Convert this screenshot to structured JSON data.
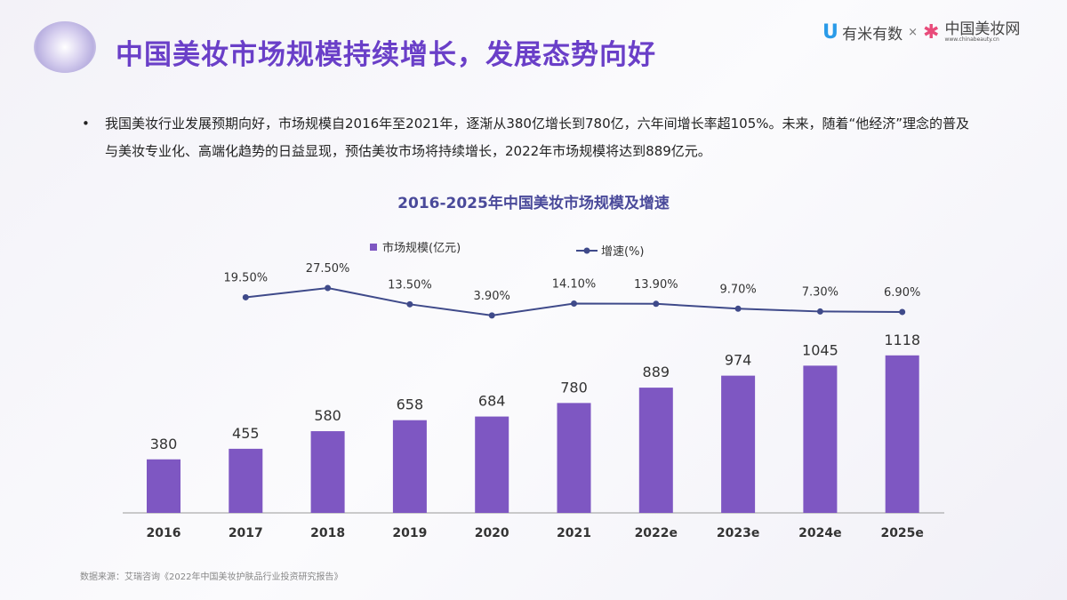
{
  "header": {
    "title": "中国美妆市场规模持续增长，发展态势向好",
    "brand_left": "有米有数",
    "brand_sep": "×",
    "brand_right": "中国美妆网",
    "brand_right_url": "www.chinabeauty.cn"
  },
  "bullet": "我国美妆行业发展预期向好，市场规模自2016年至2021年，逐渐从380亿增长到780亿，六年间增长率超105%。未来，随着“他经济”理念的普及与美妆专业化、高端化趋势的日益显现，预估美妆市场将持续增长，2022年市场规模将达到889亿元。",
  "chart_data": {
    "type": "bar+line",
    "title": "2016-2025年中国美妆市场规模及增速",
    "categories": [
      "2016",
      "2017",
      "2018",
      "2019",
      "2020",
      "2021",
      "2022e",
      "2023e",
      "2024e",
      "2025e"
    ],
    "series": [
      {
        "name": "市场规模(亿元)",
        "type": "bar",
        "color": "#7e57c2",
        "values": [
          380,
          455,
          580,
          658,
          684,
          780,
          889,
          974,
          1045,
          1118
        ]
      },
      {
        "name": "增速(%)",
        "type": "line",
        "color": "#3f4a8a",
        "values": [
          null,
          19.5,
          27.5,
          13.5,
          3.9,
          14.1,
          13.9,
          9.7,
          7.3,
          6.9
        ],
        "labels": [
          "",
          "19.50%",
          "27.50%",
          "13.50%",
          "3.90%",
          "14.10%",
          "13.90%",
          "9.70%",
          "7.30%",
          "6.90%"
        ]
      }
    ],
    "legend": "top-center",
    "grid": false
  },
  "source": "数据来源：艾瑞咨询《2022年中国美妆护肤品行业投资研究报告》"
}
